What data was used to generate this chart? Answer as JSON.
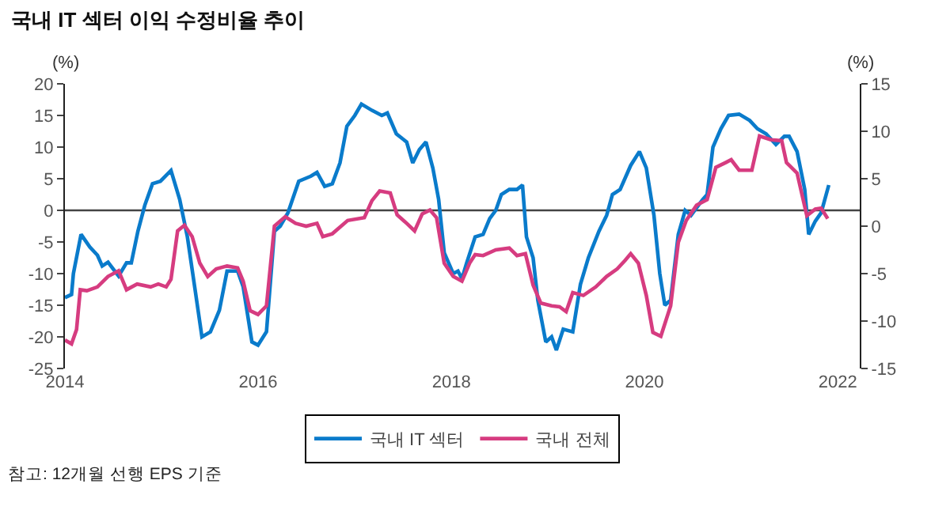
{
  "chart_data": {
    "type": "line",
    "title": "국내 IT 섹터 이익 수정비율 추이",
    "ylabel": "(%)",
    "y2label": "(%)",
    "annotations": [
      "참고: 12개월 선행 EPS 기준"
    ],
    "xlim": [
      "2014-01-01",
      "2022-03-25"
    ],
    "xticks": [
      {
        "value": "2014-01-01",
        "label": "2014"
      },
      {
        "value": "2016-01-01",
        "label": "2016"
      },
      {
        "value": "2018-01-01",
        "label": "2018"
      },
      {
        "value": "2020-01-01",
        "label": "2020"
      },
      {
        "value": "2022-01-01",
        "label": "2022"
      }
    ],
    "ylim": [
      -25,
      20
    ],
    "yticks": [
      -25,
      -20,
      -15,
      -10,
      -5,
      0,
      5,
      10,
      15,
      20
    ],
    "y2lim": [
      -15,
      15
    ],
    "y2ticks": [
      -15,
      -10,
      -5,
      0,
      5,
      10,
      15
    ],
    "grid": false,
    "ref_lines": [
      {
        "axis": "y",
        "value": 0,
        "color": "#444444",
        "line_style": "solid"
      }
    ],
    "legend": "bottom",
    "marker": "none",
    "line_style": "solid",
    "series": [
      {
        "name": "국내 IT 섹터",
        "color": "#0a7bcb",
        "axis": "y",
        "x": [
          "2014-01-01",
          "2014-01-26",
          "2014-02-02",
          "2014-03-03",
          "2014-04-05",
          "2014-05-04",
          "2014-05-22",
          "2014-06-13",
          "2014-07-23",
          "2014-08-22",
          "2014-09-09",
          "2014-10-04",
          "2014-10-30",
          "2014-11-28",
          "2014-12-28",
          "2015-02-06",
          "2015-03-11",
          "2015-04-09",
          "2015-05-08",
          "2015-06-03",
          "2015-07-05",
          "2015-08-08",
          "2015-09-06",
          "2015-10-16",
          "2015-11-06",
          "2015-12-09",
          "2016-01-01",
          "2016-02-02",
          "2016-03-03",
          "2016-03-25",
          "2016-04-23",
          "2016-06-03",
          "2016-07-19",
          "2016-08-11",
          "2016-09-09",
          "2016-10-08",
          "2016-11-06",
          "2016-12-02",
          "2017-01-01",
          "2017-01-26",
          "2017-03-07",
          "2017-04-13",
          "2017-05-04",
          "2017-06-07",
          "2017-07-16",
          "2017-08-08",
          "2017-09-02",
          "2017-09-27",
          "2017-10-23",
          "2017-11-14",
          "2017-12-05",
          "2018-01-08",
          "2018-01-26",
          "2018-02-10",
          "2018-02-28",
          "2018-04-01",
          "2018-05-01",
          "2018-05-26",
          "2018-06-18",
          "2018-07-09",
          "2018-08-08",
          "2018-09-06",
          "2018-09-27",
          "2018-10-12",
          "2018-11-06",
          "2018-11-24",
          "2018-12-24",
          "2019-01-15",
          "2019-02-02",
          "2019-02-28",
          "2019-04-05",
          "2019-05-04",
          "2019-06-03",
          "2019-07-13",
          "2019-08-11",
          "2019-09-02",
          "2019-10-01",
          "2019-11-10",
          "2019-12-13",
          "2020-01-08",
          "2020-02-06",
          "2020-02-28",
          "2020-03-18",
          "2020-04-09",
          "2020-05-08",
          "2020-06-03",
          "2020-06-25",
          "2020-08-08",
          "2020-08-25",
          "2020-09-16",
          "2020-10-16",
          "2020-11-14",
          "2020-12-24",
          "2021-02-02",
          "2021-03-03",
          "2021-04-05",
          "2021-05-12",
          "2021-06-13",
          "2021-07-01",
          "2021-07-31",
          "2021-08-29",
          "2021-09-13",
          "2021-10-08",
          "2021-10-30",
          "2021-11-28"
        ],
        "values": [
          -13.8,
          -13.3,
          -10,
          -3.8,
          -5.8,
          -7.1,
          -8.8,
          -8.2,
          -10.4,
          -8.3,
          -8.3,
          -3.3,
          0.8,
          4.2,
          4.6,
          6.3,
          1.7,
          -4.2,
          -12.5,
          -20,
          -19.2,
          -15.8,
          -9.6,
          -9.6,
          -12.1,
          -20.8,
          -21.3,
          -19.2,
          -3.3,
          -2.5,
          -0.4,
          4.6,
          5.4,
          6,
          3.8,
          4.2,
          7.5,
          13.3,
          15,
          16.8,
          15.8,
          15,
          15.4,
          12.1,
          10.8,
          7.5,
          9.6,
          10.8,
          6.7,
          1.7,
          -6.7,
          -10,
          -9.6,
          -10.8,
          -8.3,
          -4.2,
          -3.8,
          -1.3,
          0,
          2.5,
          3.3,
          3.3,
          4,
          -4.2,
          -7.5,
          -14.2,
          -20.8,
          -20,
          -22.1,
          -18.8,
          -19.2,
          -11.7,
          -7.5,
          -3.3,
          -0.8,
          2.5,
          3.3,
          7.1,
          9.3,
          6.7,
          -0.8,
          -10,
          -15,
          -14.2,
          -3.8,
          0,
          -0.8,
          1.7,
          2.5,
          10,
          12.9,
          15,
          15.2,
          14.2,
          12.9,
          12.1,
          10.4,
          11.7,
          11.7,
          9.3,
          3.3,
          -3.8,
          -1.7,
          -0.4,
          4
        ]
      },
      {
        "name": "국내 전체",
        "color": "#d63c80",
        "axis": "y2",
        "x": [
          "2014-01-01",
          "2014-01-26",
          "2014-02-14",
          "2014-02-28",
          "2014-03-25",
          "2014-05-04",
          "2014-06-13",
          "2014-07-23",
          "2014-08-22",
          "2014-10-01",
          "2014-11-21",
          "2014-12-20",
          "2015-01-19",
          "2015-02-06",
          "2015-03-03",
          "2015-03-29",
          "2015-04-27",
          "2015-05-26",
          "2015-06-25",
          "2015-07-27",
          "2015-09-06",
          "2015-10-16",
          "2015-11-06",
          "2015-12-02",
          "2016-01-01",
          "2016-02-02",
          "2016-03-03",
          "2016-04-13",
          "2016-05-22",
          "2016-07-01",
          "2016-08-11",
          "2016-09-02",
          "2016-10-08",
          "2016-12-05",
          "2017-02-06",
          "2017-03-07",
          "2017-04-05",
          "2017-05-15",
          "2017-06-10",
          "2017-07-16",
          "2017-08-15",
          "2017-09-13",
          "2017-10-12",
          "2017-11-06",
          "2017-12-05",
          "2018-01-08",
          "2018-02-10",
          "2018-03-11",
          "2018-04-01",
          "2018-05-01",
          "2018-06-18",
          "2018-08-08",
          "2018-09-06",
          "2018-10-08",
          "2018-11-06",
          "2018-12-05",
          "2019-01-15",
          "2019-02-14",
          "2019-03-11",
          "2019-04-05",
          "2019-05-15",
          "2019-07-01",
          "2019-08-11",
          "2019-09-20",
          "2019-10-20",
          "2019-11-10",
          "2019-12-09",
          "2020-01-08",
          "2020-02-02",
          "2020-03-03",
          "2020-04-09",
          "2020-05-08",
          "2020-06-07",
          "2020-07-16",
          "2020-08-25",
          "2020-09-27",
          "2020-11-03",
          "2020-11-24",
          "2020-12-24",
          "2021-02-10",
          "2021-03-11",
          "2021-04-23",
          "2021-06-03",
          "2021-06-21",
          "2021-07-31",
          "2021-09-06",
          "2021-10-08",
          "2021-10-30",
          "2021-11-24"
        ],
        "values": [
          -12,
          -12.4,
          -10.9,
          -6.7,
          -6.8,
          -6.4,
          -5.3,
          -4.7,
          -6.7,
          -6.1,
          -6.4,
          -6.1,
          -6.4,
          -5.6,
          -0.5,
          0.1,
          -1.1,
          -3.9,
          -5.3,
          -4.5,
          -4.2,
          -4.4,
          -5.8,
          -8.9,
          -9.3,
          -8.4,
          0,
          1,
          0.3,
          0,
          0.3,
          -1.1,
          -0.8,
          0.6,
          0.9,
          2.7,
          3.7,
          3.5,
          1.2,
          0.3,
          -0.5,
          1.3,
          1.7,
          0.9,
          -3.9,
          -5.3,
          -5.8,
          -3.9,
          -3,
          -3.1,
          -2.5,
          -2.3,
          -3.1,
          -2.9,
          -6.2,
          -8.1,
          -8.4,
          -8.5,
          -9,
          -7,
          -7.3,
          -6.4,
          -5.3,
          -4.5,
          -3.6,
          -2.9,
          -3.9,
          -7.3,
          -11.2,
          -11.6,
          -8.4,
          -1.7,
          0.6,
          2.2,
          2.8,
          6.2,
          6.7,
          7,
          5.9,
          5.9,
          9.5,
          9.1,
          9,
          6.7,
          5.6,
          1.1,
          1.8,
          1.9,
          0.8
        ]
      }
    ]
  }
}
